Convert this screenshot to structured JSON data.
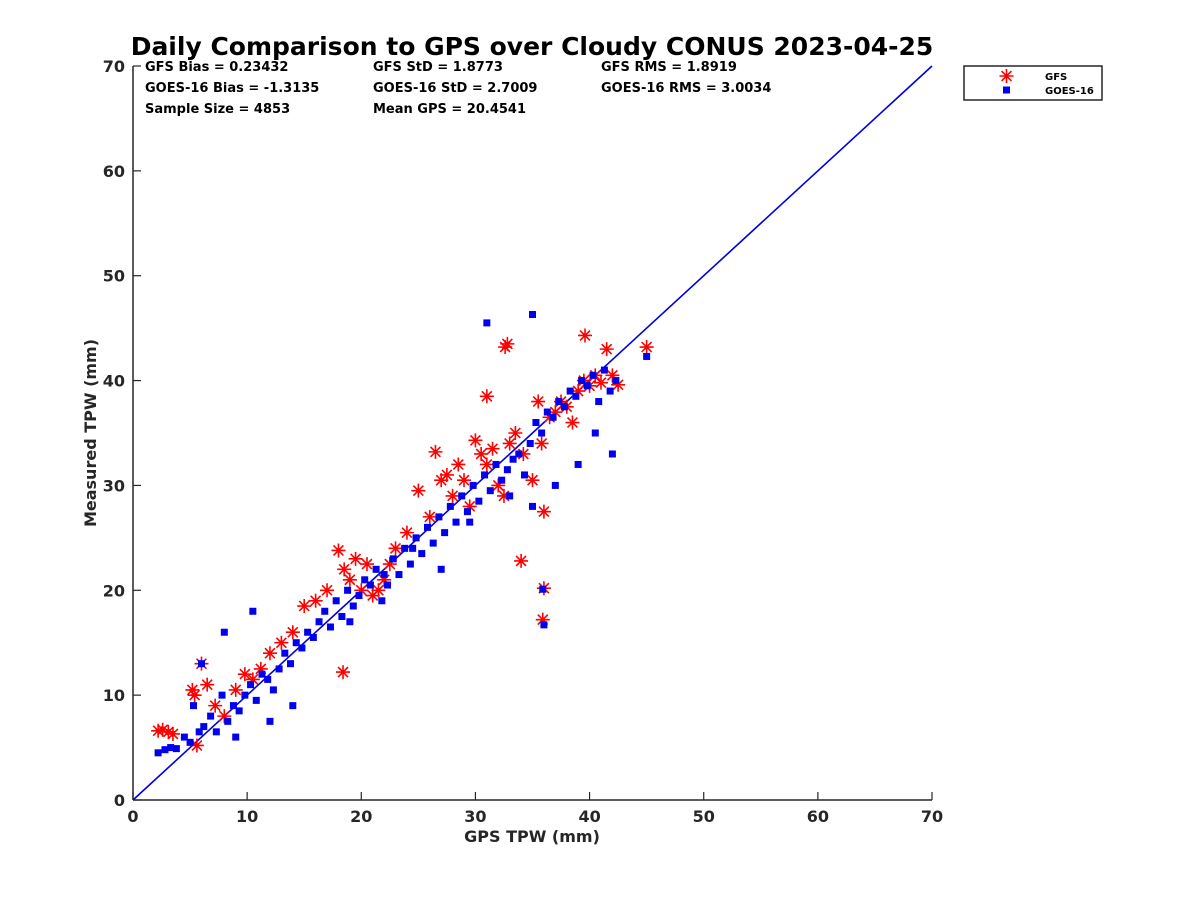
{
  "chart_data": {
    "type": "scatter",
    "title": "Daily Comparison to GPS over Cloudy CONUS 2023-04-25",
    "xlabel": "GPS TPW (mm)",
    "ylabel": "Measured TPW (mm)",
    "xlim": [
      0,
      70
    ],
    "ylim": [
      0,
      70
    ],
    "xticks": [
      "0",
      "10",
      "20",
      "30",
      "40",
      "50",
      "60",
      "70"
    ],
    "yticks": [
      "0",
      "10",
      "20",
      "30",
      "40",
      "50",
      "60",
      "70"
    ],
    "grid": false,
    "legend_position": "outside top-right",
    "stats": [
      "GFS Bias = 0.23432",
      "GFS StD = 1.8773",
      "GFS RMS = 1.8919",
      "GOES-16 Bias = -1.3135",
      "GOES-16 StD = 2.7009",
      "GOES-16 RMS = 3.0034",
      "Sample Size = 4853",
      "Mean GPS = 20.4541"
    ],
    "reference_line": {
      "x": [
        0,
        70
      ],
      "y": [
        0,
        70
      ],
      "color": "#0000dd"
    },
    "series": [
      {
        "name": "GFS",
        "marker": "asterisk",
        "color": "#ff0000",
        "x": [
          2.2,
          2.6,
          3.1,
          3.5,
          5.2,
          5.4,
          5.6,
          6.0,
          6.5,
          7.2,
          8.0,
          9.0,
          9.8,
          10.5,
          11.2,
          12.0,
          13.0,
          14.0,
          15.0,
          16.0,
          17.0,
          18.0,
          18.5,
          19.0,
          19.5,
          20.0,
          20.5,
          21.0,
          21.5,
          22.0,
          22.5,
          23.0,
          24.0,
          25.0,
          26.0,
          26.5,
          27.0,
          27.5,
          28.0,
          28.5,
          29.0,
          29.5,
          30.0,
          30.5,
          31.0,
          31.5,
          32.0,
          32.5,
          32.8,
          33.0,
          33.5,
          34.0,
          34.2,
          35.0,
          35.5,
          35.8,
          36.0,
          36.5,
          37.0,
          37.5,
          38.0,
          38.5,
          39.0,
          39.5,
          39.6,
          40.0,
          40.5,
          41.0,
          41.5,
          42.0,
          42.5,
          45.0,
          18.4,
          31.0,
          32.6,
          36.0,
          35.9
        ],
        "y": [
          6.6,
          6.7,
          6.5,
          6.3,
          10.5,
          10.0,
          5.2,
          13.0,
          11.0,
          9.0,
          8.0,
          10.5,
          12.0,
          11.5,
          12.5,
          14.0,
          15.0,
          16.0,
          18.5,
          19.0,
          20.0,
          23.8,
          22.0,
          21.0,
          23.0,
          20.0,
          22.5,
          19.5,
          20.0,
          21.0,
          22.5,
          24.0,
          25.5,
          29.5,
          27.0,
          33.2,
          30.5,
          31.0,
          29.0,
          32.0,
          30.5,
          28.0,
          34.3,
          33.0,
          32.0,
          33.5,
          30.0,
          29.0,
          43.5,
          34.0,
          35.0,
          22.8,
          33.0,
          30.5,
          38.0,
          34.0,
          27.5,
          36.5,
          37.0,
          38.0,
          37.5,
          36.0,
          39.0,
          40.0,
          44.3,
          39.5,
          40.5,
          39.8,
          43.0,
          40.5,
          39.6,
          43.2,
          12.2,
          38.5,
          43.2,
          20.2,
          17.2
        ]
      },
      {
        "name": "GOES-16",
        "marker": "square",
        "color": "#0000ee",
        "x": [
          2.2,
          2.8,
          3.3,
          3.8,
          4.5,
          5.0,
          5.3,
          5.8,
          6.2,
          6.8,
          7.3,
          7.8,
          8.3,
          8.8,
          9.3,
          9.8,
          10.3,
          10.8,
          11.3,
          11.8,
          12.3,
          12.8,
          13.3,
          13.8,
          14.3,
          14.8,
          15.3,
          15.8,
          16.3,
          16.8,
          17.3,
          17.8,
          18.3,
          18.8,
          19.3,
          19.8,
          20.3,
          20.8,
          21.3,
          21.8,
          22.3,
          22.8,
          23.3,
          23.8,
          24.3,
          24.8,
          25.3,
          25.8,
          26.3,
          26.8,
          27.3,
          27.8,
          28.3,
          28.8,
          29.3,
          29.8,
          30.3,
          30.8,
          31.3,
          31.8,
          32.3,
          32.8,
          33.3,
          33.8,
          34.3,
          34.8,
          35.3,
          35.8,
          36.3,
          36.8,
          37.3,
          37.8,
          38.3,
          38.8,
          39.3,
          39.8,
          40.3,
          40.8,
          41.3,
          41.8,
          42.3,
          45.0,
          31.0,
          35.0,
          36.0,
          35.9,
          10.5,
          8.0,
          6.0,
          9.0,
          12.0,
          14.0,
          19.0,
          22.0,
          24.5,
          27.0,
          29.5,
          33.0,
          35.0,
          37.0,
          39.0,
          40.5,
          42.0
        ],
        "y": [
          4.5,
          4.8,
          5.0,
          4.9,
          6.0,
          5.5,
          9.0,
          6.5,
          7.0,
          8.0,
          6.5,
          10.0,
          7.5,
          9.0,
          8.5,
          10.0,
          11.0,
          9.5,
          12.0,
          11.5,
          10.5,
          12.5,
          14.0,
          13.0,
          15.0,
          14.5,
          16.0,
          15.5,
          17.0,
          18.0,
          16.5,
          19.0,
          17.5,
          20.0,
          18.5,
          19.5,
          21.0,
          20.5,
          22.0,
          19.0,
          20.5,
          23.0,
          21.5,
          24.0,
          22.5,
          25.0,
          23.5,
          26.0,
          24.5,
          27.0,
          25.5,
          28.0,
          26.5,
          29.0,
          27.5,
          30.0,
          28.5,
          31.0,
          29.5,
          32.0,
          30.5,
          31.5,
          32.5,
          33.0,
          31.0,
          34.0,
          36.0,
          35.0,
          37.0,
          36.5,
          38.0,
          37.5,
          39.0,
          38.5,
          40.0,
          39.5,
          40.5,
          38.0,
          41.0,
          39.0,
          40.0,
          42.3,
          45.5,
          46.3,
          16.7,
          20.1,
          18.0,
          16.0,
          13.0,
          6.0,
          7.5,
          9.0,
          17.0,
          21.5,
          24.0,
          22.0,
          26.5,
          29.0,
          28.0,
          30.0,
          32.0,
          35.0,
          33.0
        ]
      }
    ]
  }
}
